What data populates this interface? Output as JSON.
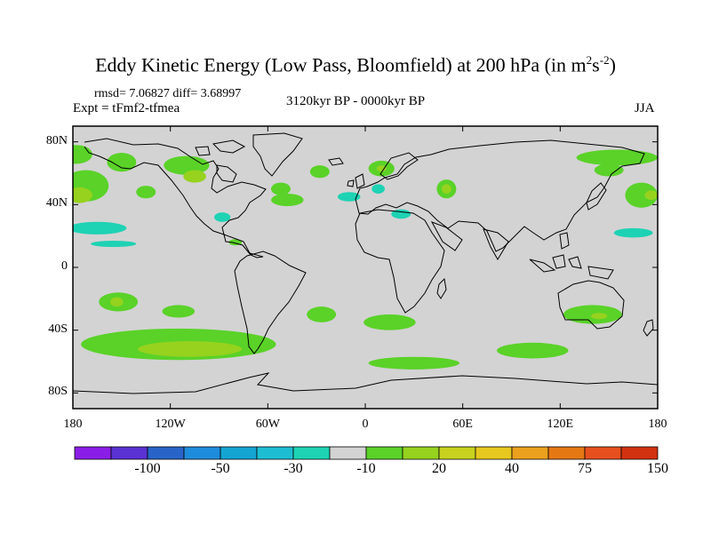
{
  "title": {
    "main": "Eddy Kinetic Energy (Low Pass, Bloomfield) at 200 hPa (in m",
    "sup1": "2",
    "mid": "s",
    "sup2": "-2",
    "close": ")"
  },
  "stats": "rmsd= 7.06827 diff= 3.68997",
  "experiment": "Expt = tFmf2-tfmea",
  "period": "3120kyr BP - 0000kyr BP",
  "season": "JJA",
  "map": {
    "projection": "cylindrical-equidistant",
    "lon_range": [
      -180,
      180
    ],
    "lat_range": [
      -90,
      90
    ],
    "background_color": "#d3d3d3",
    "lat_ticks": [
      {
        "value": 80,
        "label": "80N"
      },
      {
        "value": 40,
        "label": "40N"
      },
      {
        "value": 0,
        "label": "0"
      },
      {
        "value": -40,
        "label": "40S"
      },
      {
        "value": -80,
        "label": "80S"
      }
    ],
    "lon_ticks": [
      {
        "value": -180,
        "label": "180"
      },
      {
        "value": -120,
        "label": "120W"
      },
      {
        "value": -60,
        "label": "60W"
      },
      {
        "value": 0,
        "label": "0"
      },
      {
        "value": 60,
        "label": "60E"
      },
      {
        "value": 120,
        "label": "120E"
      },
      {
        "value": 180,
        "label": "180"
      }
    ]
  },
  "colorbar": {
    "colors": [
      "#8b1ee6",
      "#5a32d2",
      "#2864c8",
      "#1e8cdc",
      "#14a5d2",
      "#1ebed2",
      "#1ed2b4",
      "#d3d3d3",
      "#5ad228",
      "#96d21e",
      "#c8d21e",
      "#e6c81e",
      "#eba01e",
      "#e67814",
      "#e6501e",
      "#d2320f"
    ],
    "labels": [
      {
        "text": "-100",
        "after_box": 1
      },
      {
        "text": "-50",
        "after_box": 3
      },
      {
        "text": "-30",
        "after_box": 5
      },
      {
        "text": "-10",
        "after_box": 7
      },
      {
        "text": "20",
        "after_box": 9
      },
      {
        "text": "40",
        "after_box": 11
      },
      {
        "text": "75",
        "after_box": 13
      },
      {
        "text": "150",
        "after_box": 15
      }
    ]
  },
  "anomaly_regions": [
    {
      "lon": -178,
      "lat": 72,
      "rlon": 10,
      "rlat": 6,
      "color": "#5ad228"
    },
    {
      "lon": -172,
      "lat": 52,
      "rlon": 14,
      "rlat": 10,
      "color": "#5ad228"
    },
    {
      "lon": -176,
      "lat": 46,
      "rlon": 8,
      "rlat": 5,
      "color": "#96d21e"
    },
    {
      "lon": -165,
      "lat": 25,
      "rlon": 18,
      "rlat": 4,
      "color": "#1ed2b4"
    },
    {
      "lon": -150,
      "lat": 67,
      "rlon": 9,
      "rlat": 6,
      "color": "#5ad228"
    },
    {
      "lon": -110,
      "lat": 65,
      "rlon": 14,
      "rlat": 6,
      "color": "#5ad228"
    },
    {
      "lon": -105,
      "lat": 58,
      "rlon": 7,
      "rlat": 4,
      "color": "#96d21e"
    },
    {
      "lon": -135,
      "lat": 48,
      "rlon": 6,
      "rlat": 4,
      "color": "#5ad228"
    },
    {
      "lon": -52,
      "lat": 50,
      "rlon": 6,
      "rlat": 4,
      "color": "#5ad228"
    },
    {
      "lon": -48,
      "lat": 43,
      "rlon": 10,
      "rlat": 4,
      "color": "#5ad228"
    },
    {
      "lon": -28,
      "lat": 61,
      "rlon": 6,
      "rlat": 4,
      "color": "#5ad228"
    },
    {
      "lon": -10,
      "lat": 45,
      "rlon": 7,
      "rlat": 3,
      "color": "#1ed2b4"
    },
    {
      "lon": 8,
      "lat": 50,
      "rlon": 4,
      "rlat": 3,
      "color": "#1ed2b4"
    },
    {
      "lon": 10,
      "lat": 63,
      "rlon": 8,
      "rlat": 5,
      "color": "#5ad228"
    },
    {
      "lon": 10,
      "lat": 63,
      "rlon": 3,
      "rlat": 2,
      "color": "#96d21e"
    },
    {
      "lon": 22,
      "lat": 34,
      "rlon": 6,
      "rlat": 3,
      "color": "#1ed2b4"
    },
    {
      "lon": 50,
      "lat": 50,
      "rlon": 6,
      "rlat": 6,
      "color": "#5ad228"
    },
    {
      "lon": 50,
      "lat": 50,
      "rlon": 3,
      "rlat": 3,
      "color": "#96d21e"
    },
    {
      "lon": -88,
      "lat": 32,
      "rlon": 5,
      "rlat": 3,
      "color": "#1ed2b4"
    },
    {
      "lon": -80,
      "lat": 16,
      "rlon": 4,
      "rlat": 2,
      "color": "#5ad228"
    },
    {
      "lon": -155,
      "lat": 15,
      "rlon": 14,
      "rlat": 2,
      "color": "#1ed2b4"
    },
    {
      "lon": 155,
      "lat": 70,
      "rlon": 25,
      "rlat": 5,
      "color": "#5ad228"
    },
    {
      "lon": 150,
      "lat": 62,
      "rlon": 9,
      "rlat": 4,
      "color": "#5ad228"
    },
    {
      "lon": 170,
      "lat": 46,
      "rlon": 10,
      "rlat": 8,
      "color": "#5ad228"
    },
    {
      "lon": 176,
      "lat": 46,
      "rlon": 4,
      "rlat": 3,
      "color": "#96d21e"
    },
    {
      "lon": 165,
      "lat": 22,
      "rlon": 12,
      "rlat": 3,
      "color": "#1ed2b4"
    },
    {
      "lon": -152,
      "lat": -22,
      "rlon": 12,
      "rlat": 6,
      "color": "#5ad228"
    },
    {
      "lon": -153,
      "lat": -22,
      "rlon": 4,
      "rlat": 3,
      "color": "#96d21e"
    },
    {
      "lon": -115,
      "lat": -28,
      "rlon": 10,
      "rlat": 4,
      "color": "#5ad228"
    },
    {
      "lon": -115,
      "lat": -49,
      "rlon": 60,
      "rlat": 10,
      "color": "#5ad228"
    },
    {
      "lon": -108,
      "lat": -52,
      "rlon": 32,
      "rlat": 5,
      "color": "#96d21e"
    },
    {
      "lon": -27,
      "lat": -30,
      "rlon": 9,
      "rlat": 5,
      "color": "#5ad228"
    },
    {
      "lon": 15,
      "lat": -35,
      "rlon": 16,
      "rlat": 5,
      "color": "#5ad228"
    },
    {
      "lon": 30,
      "lat": -61,
      "rlon": 28,
      "rlat": 4,
      "color": "#5ad228"
    },
    {
      "lon": 103,
      "lat": -53,
      "rlon": 22,
      "rlat": 5,
      "color": "#5ad228"
    },
    {
      "lon": 140,
      "lat": -30,
      "rlon": 18,
      "rlat": 6,
      "color": "#5ad228"
    },
    {
      "lon": 144,
      "lat": -31,
      "rlon": 5,
      "rlat": 2,
      "color": "#96d21e"
    }
  ]
}
